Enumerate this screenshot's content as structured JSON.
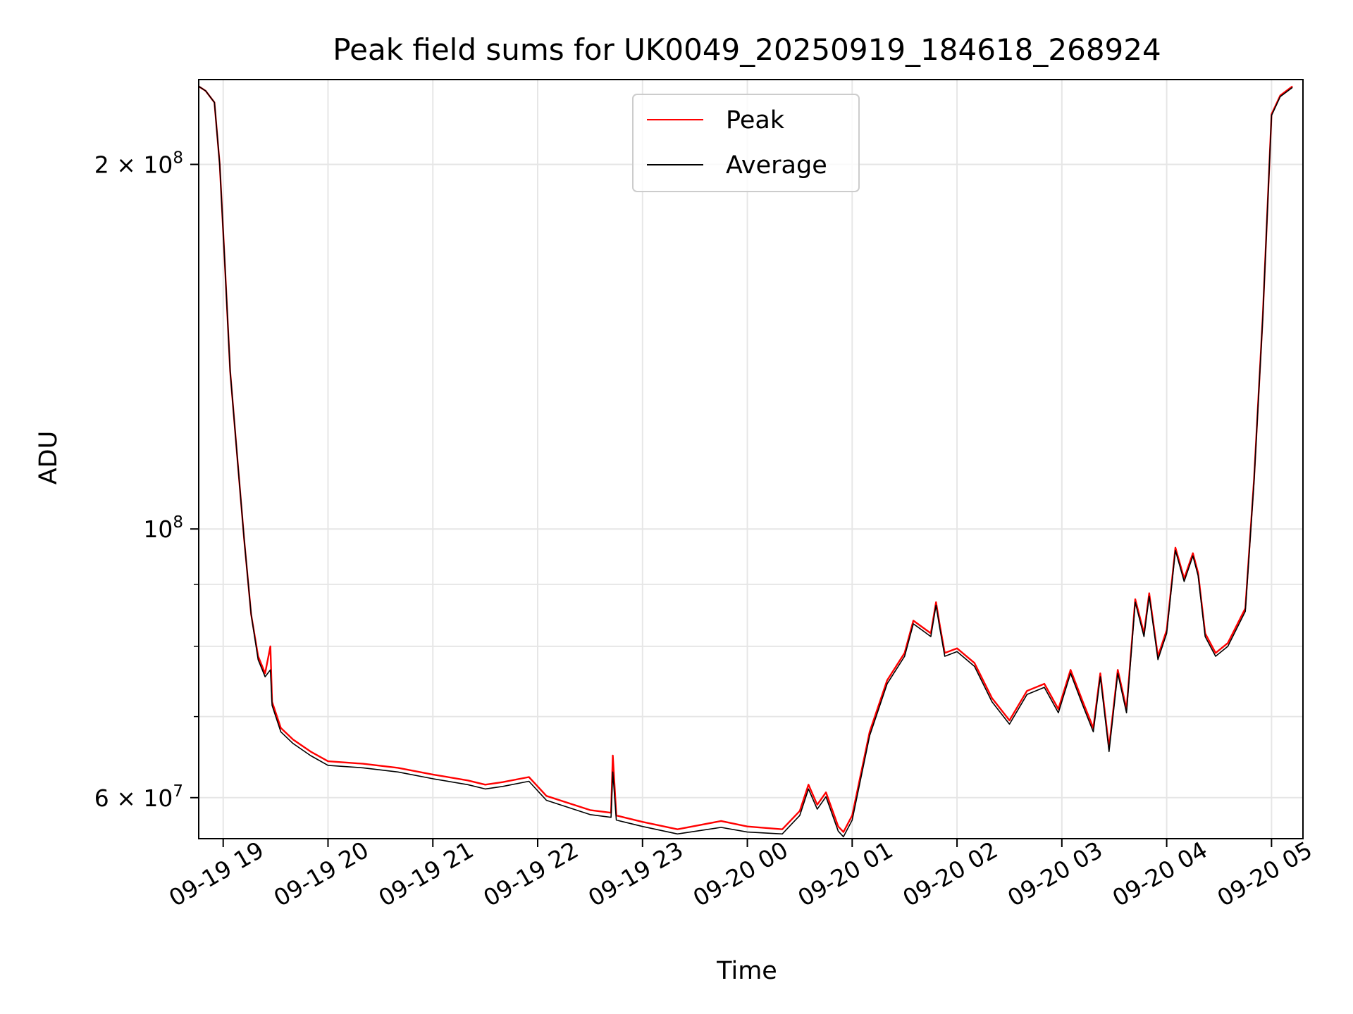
{
  "chart_data": {
    "type": "line",
    "title": "Peak field sums for UK0049_20250919_184618_268924",
    "xlabel": "Time",
    "ylabel": "ADU",
    "yscale": "log",
    "grid": true,
    "legend_position": "upper center",
    "x_tick_labels": [
      "09-19 19",
      "09-19 20",
      "09-19 21",
      "09-19 22",
      "09-19 23",
      "09-20 00",
      "09-20 01",
      "09-20 02",
      "09-20 03",
      "09-20 04",
      "09-20 05"
    ],
    "y_tick_labels": [
      {
        "value": 60000000,
        "mantissa": "6",
        "exponent": "7"
      },
      {
        "value": 100000000,
        "mantissa": "",
        "exponent": "8"
      },
      {
        "value": 200000000,
        "mantissa": "2",
        "exponent": "8"
      }
    ],
    "xlim": [
      "2025-09-19 18:46",
      "2025-09-20 05:18"
    ],
    "ylim": [
      55500000,
      235000000
    ],
    "series": [
      {
        "name": "Peak",
        "color": "#ff0000",
        "points": [
          [
            "2025-09-19 18:46",
            232000000
          ],
          [
            "2025-09-19 18:50",
            230000000
          ],
          [
            "2025-09-19 18:55",
            225000000
          ],
          [
            "2025-09-19 18:58",
            200000000
          ],
          [
            "2025-09-19 19:01",
            165000000
          ],
          [
            "2025-09-19 19:04",
            135000000
          ],
          [
            "2025-09-19 19:08",
            115000000
          ],
          [
            "2025-09-19 19:12",
            98000000
          ],
          [
            "2025-09-19 19:16",
            85000000
          ],
          [
            "2025-09-19 19:20",
            78500000
          ],
          [
            "2025-09-19 19:24",
            76000000
          ],
          [
            "2025-09-19 19:27",
            80000000
          ],
          [
            "2025-09-19 19:28",
            72000000
          ],
          [
            "2025-09-19 19:33",
            68500000
          ],
          [
            "2025-09-19 19:40",
            67000000
          ],
          [
            "2025-09-19 19:50",
            65500000
          ],
          [
            "2025-09-19 20:00",
            64300000
          ],
          [
            "2025-09-19 20:20",
            64000000
          ],
          [
            "2025-09-19 20:40",
            63500000
          ],
          [
            "2025-09-19 21:00",
            62700000
          ],
          [
            "2025-09-19 21:20",
            62000000
          ],
          [
            "2025-09-19 21:30",
            61500000
          ],
          [
            "2025-09-19 21:40",
            61800000
          ],
          [
            "2025-09-19 21:55",
            62400000
          ],
          [
            "2025-09-19 22:05",
            60200000
          ],
          [
            "2025-09-19 22:30",
            58600000
          ],
          [
            "2025-09-19 22:42",
            58300000
          ],
          [
            "2025-09-19 22:43",
            65000000
          ],
          [
            "2025-09-19 22:45",
            58000000
          ],
          [
            "2025-09-19 23:00",
            57300000
          ],
          [
            "2025-09-19 23:20",
            56500000
          ],
          [
            "2025-09-19 23:45",
            57400000
          ],
          [
            "2025-09-20 00:00",
            56800000
          ],
          [
            "2025-09-20 00:20",
            56500000
          ],
          [
            "2025-09-20 00:30",
            58500000
          ],
          [
            "2025-09-20 00:35",
            61500000
          ],
          [
            "2025-09-20 00:40",
            59200000
          ],
          [
            "2025-09-20 00:45",
            60600000
          ],
          [
            "2025-09-20 00:52",
            56800000
          ],
          [
            "2025-09-20 00:55",
            56200000
          ],
          [
            "2025-09-20 01:00",
            58000000
          ],
          [
            "2025-09-20 01:10",
            68000000
          ],
          [
            "2025-09-20 01:20",
            75000000
          ],
          [
            "2025-09-20 01:30",
            79000000
          ],
          [
            "2025-09-20 01:35",
            84000000
          ],
          [
            "2025-09-20 01:40",
            83000000
          ],
          [
            "2025-09-20 01:45",
            82000000
          ],
          [
            "2025-09-20 01:48",
            87000000
          ],
          [
            "2025-09-20 01:50",
            83500000
          ],
          [
            "2025-09-20 01:53",
            79000000
          ],
          [
            "2025-09-20 02:00",
            79700000
          ],
          [
            "2025-09-20 02:10",
            77500000
          ],
          [
            "2025-09-20 02:20",
            72500000
          ],
          [
            "2025-09-20 02:30",
            69500000
          ],
          [
            "2025-09-20 02:40",
            73500000
          ],
          [
            "2025-09-20 02:50",
            74500000
          ],
          [
            "2025-09-20 02:58",
            71000000
          ],
          [
            "2025-09-20 03:05",
            76500000
          ],
          [
            "2025-09-20 03:12",
            72000000
          ],
          [
            "2025-09-20 03:18",
            68500000
          ],
          [
            "2025-09-20 03:22",
            76000000
          ],
          [
            "2025-09-20 03:27",
            66000000
          ],
          [
            "2025-09-20 03:32",
            76500000
          ],
          [
            "2025-09-20 03:37",
            71000000
          ],
          [
            "2025-09-20 03:42",
            87500000
          ],
          [
            "2025-09-20 03:47",
            82000000
          ],
          [
            "2025-09-20 03:50",
            88500000
          ],
          [
            "2025-09-20 03:55",
            78500000
          ],
          [
            "2025-09-20 04:00",
            82500000
          ],
          [
            "2025-09-20 04:05",
            96500000
          ],
          [
            "2025-09-20 04:10",
            91000000
          ],
          [
            "2025-09-20 04:15",
            95500000
          ],
          [
            "2025-09-20 04:18",
            92000000
          ],
          [
            "2025-09-20 04:22",
            82000000
          ],
          [
            "2025-09-20 04:28",
            79000000
          ],
          [
            "2025-09-20 04:35",
            80500000
          ],
          [
            "2025-09-20 04:45",
            86000000
          ],
          [
            "2025-09-20 04:50",
            110000000
          ],
          [
            "2025-09-20 04:55",
            150000000
          ],
          [
            "2025-09-20 05:00",
            220000000
          ],
          [
            "2025-09-20 05:05",
            228000000
          ],
          [
            "2025-09-20 05:12",
            232000000
          ]
        ]
      },
      {
        "name": "Average",
        "color": "#000000",
        "points": [
          [
            "2025-09-19 18:46",
            232000000
          ],
          [
            "2025-09-19 18:50",
            230000000
          ],
          [
            "2025-09-19 18:55",
            225000000
          ],
          [
            "2025-09-19 18:58",
            200000000
          ],
          [
            "2025-09-19 19:01",
            165000000
          ],
          [
            "2025-09-19 19:04",
            135000000
          ],
          [
            "2025-09-19 19:08",
            115000000
          ],
          [
            "2025-09-19 19:12",
            98000000
          ],
          [
            "2025-09-19 19:16",
            85000000
          ],
          [
            "2025-09-19 19:20",
            78000000
          ],
          [
            "2025-09-19 19:24",
            75500000
          ],
          [
            "2025-09-19 19:27",
            76500000
          ],
          [
            "2025-09-19 19:28",
            71500000
          ],
          [
            "2025-09-19 19:33",
            68000000
          ],
          [
            "2025-09-19 19:40",
            66500000
          ],
          [
            "2025-09-19 19:50",
            65000000
          ],
          [
            "2025-09-19 20:00",
            63800000
          ],
          [
            "2025-09-19 20:20",
            63500000
          ],
          [
            "2025-09-19 20:40",
            63000000
          ],
          [
            "2025-09-19 21:00",
            62200000
          ],
          [
            "2025-09-19 21:20",
            61500000
          ],
          [
            "2025-09-19 21:30",
            61000000
          ],
          [
            "2025-09-19 21:40",
            61300000
          ],
          [
            "2025-09-19 21:55",
            61900000
          ],
          [
            "2025-09-19 22:05",
            59700000
          ],
          [
            "2025-09-19 22:30",
            58100000
          ],
          [
            "2025-09-19 22:42",
            57800000
          ],
          [
            "2025-09-19 22:43",
            63000000
          ],
          [
            "2025-09-19 22:45",
            57500000
          ],
          [
            "2025-09-19 23:00",
            56800000
          ],
          [
            "2025-09-19 23:20",
            56000000
          ],
          [
            "2025-09-19 23:45",
            56700000
          ],
          [
            "2025-09-20 00:00",
            56200000
          ],
          [
            "2025-09-20 00:20",
            56000000
          ],
          [
            "2025-09-20 00:30",
            58000000
          ],
          [
            "2025-09-20 00:35",
            61000000
          ],
          [
            "2025-09-20 00:40",
            58700000
          ],
          [
            "2025-09-20 00:45",
            60100000
          ],
          [
            "2025-09-20 00:52",
            56300000
          ],
          [
            "2025-09-20 00:55",
            55700000
          ],
          [
            "2025-09-20 01:00",
            57500000
          ],
          [
            "2025-09-20 01:10",
            67500000
          ],
          [
            "2025-09-20 01:20",
            74500000
          ],
          [
            "2025-09-20 01:30",
            78500000
          ],
          [
            "2025-09-20 01:35",
            83500000
          ],
          [
            "2025-09-20 01:40",
            82500000
          ],
          [
            "2025-09-20 01:45",
            81500000
          ],
          [
            "2025-09-20 01:48",
            86500000
          ],
          [
            "2025-09-20 01:50",
            83000000
          ],
          [
            "2025-09-20 01:53",
            78500000
          ],
          [
            "2025-09-20 02:00",
            79200000
          ],
          [
            "2025-09-20 02:10",
            77000000
          ],
          [
            "2025-09-20 02:20",
            72000000
          ],
          [
            "2025-09-20 02:30",
            69000000
          ],
          [
            "2025-09-20 02:40",
            73000000
          ],
          [
            "2025-09-20 02:50",
            74000000
          ],
          [
            "2025-09-20 02:58",
            70500000
          ],
          [
            "2025-09-20 03:05",
            76000000
          ],
          [
            "2025-09-20 03:12",
            71500000
          ],
          [
            "2025-09-20 03:18",
            68000000
          ],
          [
            "2025-09-20 03:22",
            75500000
          ],
          [
            "2025-09-20 03:27",
            65500000
          ],
          [
            "2025-09-20 03:32",
            76000000
          ],
          [
            "2025-09-20 03:37",
            70500000
          ],
          [
            "2025-09-20 03:42",
            87000000
          ],
          [
            "2025-09-20 03:47",
            81500000
          ],
          [
            "2025-09-20 03:50",
            88000000
          ],
          [
            "2025-09-20 03:55",
            78000000
          ],
          [
            "2025-09-20 04:00",
            82000000
          ],
          [
            "2025-09-20 04:05",
            96000000
          ],
          [
            "2025-09-20 04:10",
            90500000
          ],
          [
            "2025-09-20 04:15",
            95000000
          ],
          [
            "2025-09-20 04:18",
            91500000
          ],
          [
            "2025-09-20 04:22",
            81500000
          ],
          [
            "2025-09-20 04:28",
            78500000
          ],
          [
            "2025-09-20 04:35",
            80000000
          ],
          [
            "2025-09-20 04:45",
            85500000
          ],
          [
            "2025-09-20 04:50",
            109500000
          ],
          [
            "2025-09-20 04:55",
            149500000
          ],
          [
            "2025-09-20 05:00",
            219500000
          ],
          [
            "2025-09-20 05:05",
            227500000
          ],
          [
            "2025-09-20 05:12",
            231500000
          ]
        ]
      }
    ],
    "legend": [
      {
        "label": "Peak",
        "color": "#ff0000"
      },
      {
        "label": "Average",
        "color": "#000000"
      }
    ]
  }
}
